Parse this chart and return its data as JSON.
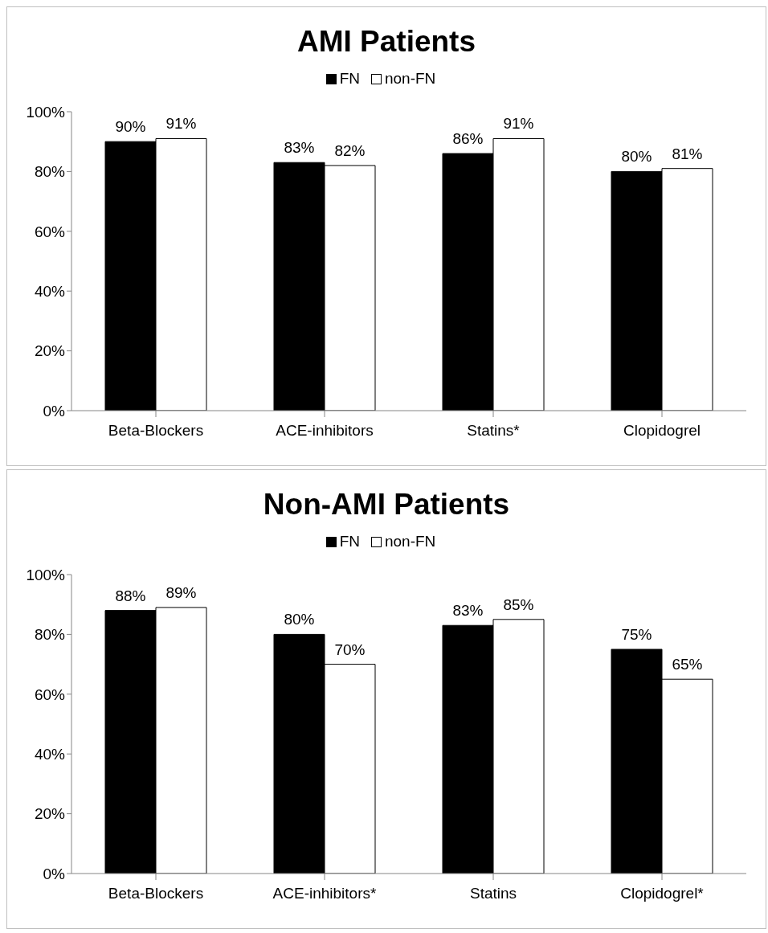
{
  "chart_data": [
    {
      "type": "bar",
      "title": "AMI Patients",
      "categories": [
        "Beta-Blockers",
        "ACE-inhibitors",
        "Statins*",
        "Clopidogrel"
      ],
      "series": [
        {
          "name": "FN",
          "color": "#000000",
          "values": [
            90,
            83,
            86,
            80
          ],
          "value_labels": [
            "90%",
            "83%",
            "86%",
            "80%"
          ]
        },
        {
          "name": "non-FN",
          "color": "#ffffff",
          "values": [
            91,
            82,
            91,
            81
          ],
          "value_labels": [
            "91%",
            "82%",
            "91%",
            "81%"
          ]
        }
      ],
      "ylim": [
        0,
        100
      ],
      "yticks": [
        {
          "value": 0,
          "label": "0%"
        },
        {
          "value": 20,
          "label": "20%"
        },
        {
          "value": 40,
          "label": "40%"
        },
        {
          "value": 60,
          "label": "60%"
        },
        {
          "value": 80,
          "label": "80%"
        },
        {
          "value": 100,
          "label": "100%"
        }
      ],
      "grid": false,
      "legend": "top"
    },
    {
      "type": "bar",
      "title": "Non-AMI Patients",
      "categories": [
        "Beta-Blockers",
        "ACE-inhibitors*",
        "Statins",
        "Clopidogrel*"
      ],
      "series": [
        {
          "name": "FN",
          "color": "#000000",
          "values": [
            88,
            80,
            83,
            75
          ],
          "value_labels": [
            "88%",
            "80%",
            "83%",
            "75%"
          ]
        },
        {
          "name": "non-FN",
          "color": "#ffffff",
          "values": [
            89,
            70,
            85,
            65
          ],
          "value_labels": [
            "89%",
            "70%",
            "85%",
            "65%"
          ]
        }
      ],
      "ylim": [
        0,
        100
      ],
      "yticks": [
        {
          "value": 0,
          "label": "0%"
        },
        {
          "value": 20,
          "label": "20%"
        },
        {
          "value": 40,
          "label": "40%"
        },
        {
          "value": 60,
          "label": "60%"
        },
        {
          "value": 80,
          "label": "80%"
        },
        {
          "value": 100,
          "label": "100%"
        }
      ],
      "grid": false,
      "legend": "top"
    }
  ]
}
